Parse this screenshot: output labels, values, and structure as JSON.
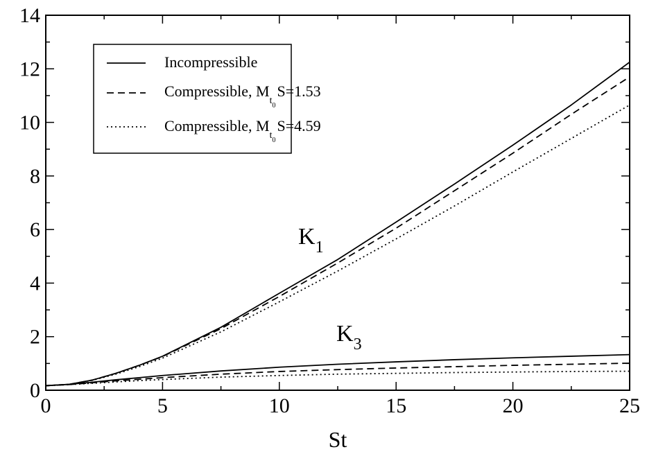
{
  "chart_data": {
    "type": "line",
    "xlabel": "St",
    "ylabel": "",
    "xlim": [
      0,
      25
    ],
    "ylim": [
      0,
      14
    ],
    "x_ticks": [
      0,
      5,
      10,
      15,
      20,
      25
    ],
    "y_ticks": [
      0,
      2,
      4,
      6,
      8,
      10,
      12,
      14
    ],
    "grid": false,
    "legend_position": "top-left",
    "legend": [
      {
        "text": "Incompressible",
        "main": "Incompressible",
        "sub": "",
        "subsub": "",
        "suffix": "",
        "style": "solid"
      },
      {
        "text": "Compressible, Mt0S=1.53",
        "main": "Compressible, M",
        "sub": "t",
        "subsub": "0",
        "suffix": "S=1.53",
        "style": "dashed"
      },
      {
        "text": "Compressible, Mt0S=4.59",
        "main": "Compressible, M",
        "sub": "t",
        "subsub": "0",
        "suffix": "S=4.59",
        "style": "dotted"
      }
    ],
    "annotations": [
      {
        "main": "K",
        "sub": "1"
      },
      {
        "main": "K",
        "sub": "3"
      }
    ],
    "x": [
      0,
      1,
      2,
      3,
      4,
      5,
      7.5,
      10,
      12.5,
      15,
      17.5,
      20,
      22.5,
      25
    ],
    "series": [
      {
        "name": "K1 Incompressible",
        "group": "K1",
        "style": "solid",
        "values": [
          0.17,
          0.22,
          0.38,
          0.63,
          0.93,
          1.27,
          2.35,
          3.62,
          4.88,
          6.28,
          7.7,
          9.15,
          10.65,
          12.25
        ]
      },
      {
        "name": "K1 Compressible, Mt0S=1.53",
        "group": "K1",
        "style": "dashed",
        "values": [
          0.17,
          0.22,
          0.38,
          0.63,
          0.93,
          1.26,
          2.3,
          3.5,
          4.75,
          6.05,
          7.45,
          8.85,
          10.3,
          11.7
        ]
      },
      {
        "name": "K1 Compressible, Mt0S=4.59",
        "group": "K1",
        "style": "dotted",
        "values": [
          0.17,
          0.22,
          0.37,
          0.6,
          0.88,
          1.2,
          2.18,
          3.3,
          4.45,
          5.65,
          6.88,
          8.15,
          9.4,
          10.65
        ]
      },
      {
        "name": "K3 Incompressible",
        "group": "K3",
        "style": "solid",
        "values": [
          0.17,
          0.22,
          0.3,
          0.39,
          0.47,
          0.55,
          0.72,
          0.86,
          0.97,
          1.06,
          1.14,
          1.21,
          1.27,
          1.33
        ]
      },
      {
        "name": "K3 Compressible, Mt0S=1.53",
        "group": "K3",
        "style": "dashed",
        "values": [
          0.17,
          0.21,
          0.28,
          0.35,
          0.41,
          0.47,
          0.6,
          0.7,
          0.77,
          0.83,
          0.88,
          0.93,
          0.97,
          1.01
        ]
      },
      {
        "name": "K3 Compressible, Mt0S=4.59",
        "group": "K3",
        "style": "dotted",
        "values": [
          0.17,
          0.21,
          0.26,
          0.31,
          0.36,
          0.4,
          0.49,
          0.55,
          0.6,
          0.63,
          0.66,
          0.68,
          0.7,
          0.71
        ]
      }
    ]
  }
}
